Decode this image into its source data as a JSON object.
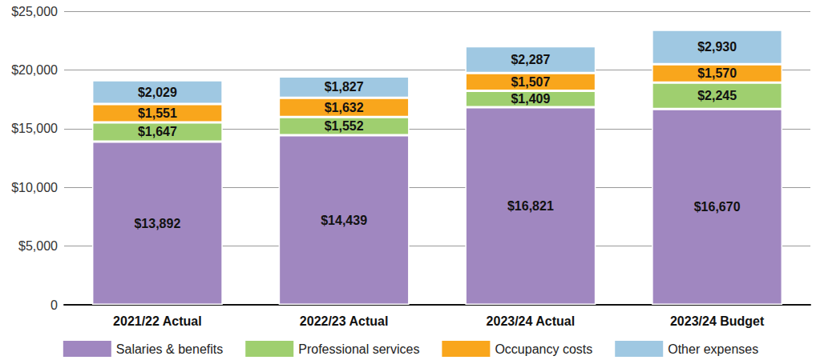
{
  "chart_data": {
    "type": "bar",
    "stacked": true,
    "data_labels": true,
    "grid": true,
    "legend": "bottom",
    "categories": [
      "2021/22 Actual",
      "2022/23 Actual",
      "2023/24 Actual",
      "2023/24 Budget"
    ],
    "series": [
      {
        "name": "Salaries & benefits",
        "color": "#a087c0",
        "values": [
          13892,
          14439,
          16821,
          16670
        ],
        "value_labels": [
          "$13,892",
          "$14,439",
          "$16,821",
          "$16,670"
        ]
      },
      {
        "name": "Professional services",
        "color": "#9fcf6f",
        "values": [
          1647,
          1552,
          1409,
          2245
        ],
        "value_labels": [
          "$1,647",
          "$1,552",
          "$1,409",
          "$2,245"
        ]
      },
      {
        "name": "Occupancy costs",
        "color": "#f9a61c",
        "values": [
          1551,
          1632,
          1507,
          1570
        ],
        "value_labels": [
          "$1,551",
          "$1,632",
          "$1,507",
          "$1,570"
        ]
      },
      {
        "name": "Other expenses",
        "color": "#9fc8e2",
        "values": [
          2029,
          1827,
          2287,
          2930
        ],
        "value_labels": [
          "$2,029",
          "$1,827",
          "$2,287",
          "$2,930"
        ]
      }
    ],
    "ylim": [
      0,
      25000
    ],
    "yticks": [
      0,
      {
        "value": 5000,
        "label": "$5,000"
      },
      {
        "value": 10000,
        "label": "$10,000"
      },
      {
        "value": 15000,
        "label": "$15,000"
      },
      {
        "value": 20000,
        "label": "$20,000"
      },
      {
        "value": 25000,
        "label": "$25,000"
      }
    ]
  }
}
